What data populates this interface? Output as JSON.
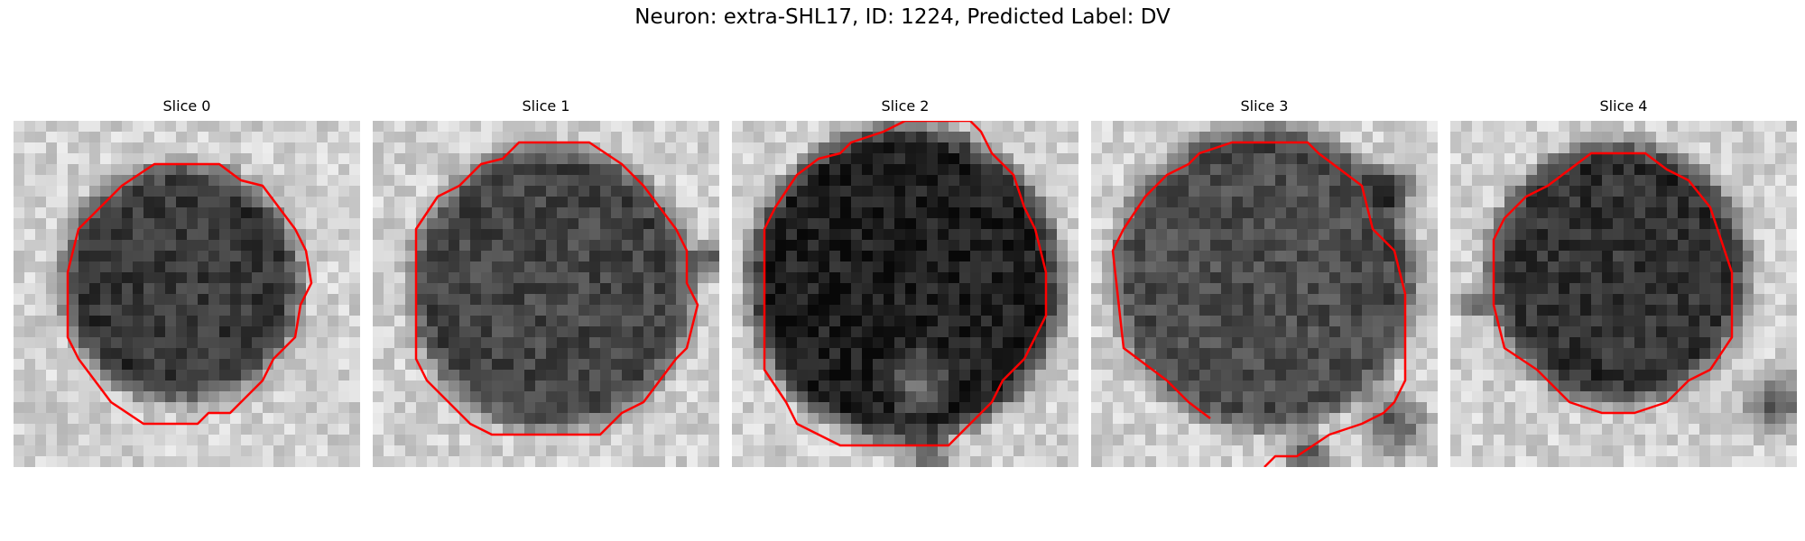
{
  "figure": {
    "title": "Neuron: extra-SHL17, ID: 1224, Predicted Label: DV"
  },
  "panels": [
    {
      "title": "Slice 0"
    },
    {
      "title": "Slice 1"
    },
    {
      "title": "Slice 2"
    },
    {
      "title": "Slice 3"
    },
    {
      "title": "Slice 4"
    }
  ],
  "colors": {
    "contour": "#ff0000",
    "background": "#ffffff"
  }
}
